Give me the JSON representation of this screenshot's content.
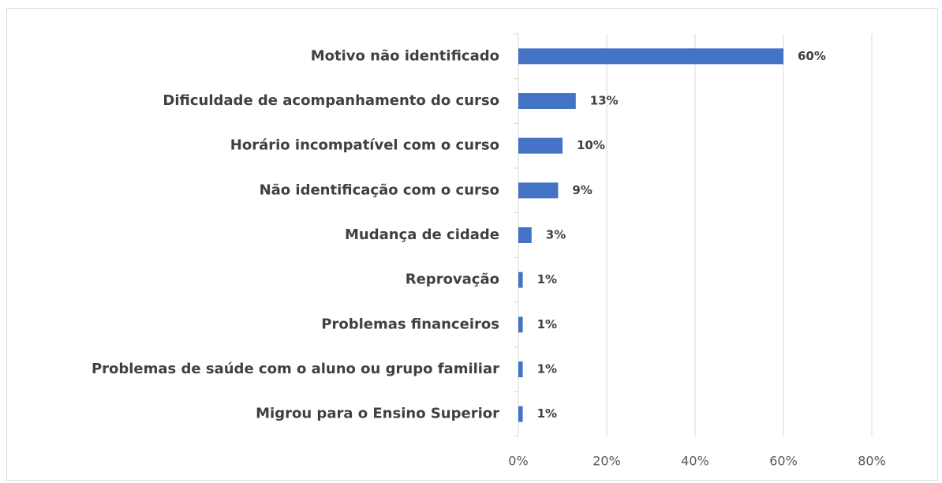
{
  "chart_data": {
    "type": "bar",
    "orientation": "horizontal",
    "categories": [
      "Motivo não identificado",
      "Dificuldade de acompanhamento do curso",
      "Horário incompatível com o curso",
      "Não identificação com o curso",
      "Mudança de cidade",
      "Reprovação",
      "Problemas financeiros",
      "Problemas de saúde com o aluno ou grupo familiar",
      "Migrou para o Ensino Superior"
    ],
    "values": [
      60,
      13,
      10,
      9,
      3,
      1,
      1,
      1,
      1
    ],
    "value_labels": [
      "60%",
      "13%",
      "10%",
      "9%",
      "3%",
      "1%",
      "1%",
      "1%",
      "1%"
    ],
    "color": "#4472c4",
    "xlim": [
      0,
      80
    ],
    "xticks": [
      {
        "value": 0,
        "label": "0%"
      },
      {
        "value": 20,
        "label": "20%"
      },
      {
        "value": 40,
        "label": "40%"
      },
      {
        "value": 60,
        "label": "60%"
      },
      {
        "value": 80,
        "label": "80%"
      }
    ],
    "grid": true
  }
}
